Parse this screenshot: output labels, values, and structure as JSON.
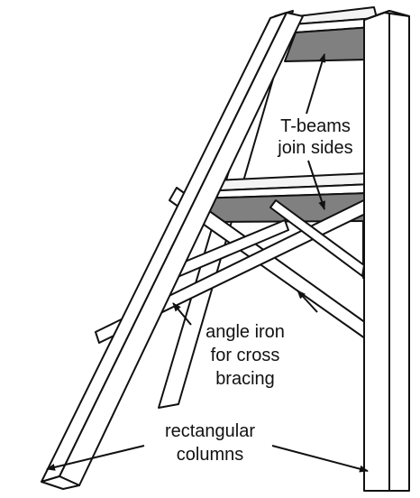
{
  "labels": {
    "tbeams_line1": "T-beams",
    "tbeams_line2": "join sides",
    "angle_line1": "angle iron",
    "angle_line2": "for cross",
    "angle_line3": "bracing",
    "columns_line1": "rectangular",
    "columns_line2": "columns"
  },
  "colors": {
    "line": "#111111",
    "fill": "#ffffff",
    "beam_top": "#f4f4f4",
    "beam_underside": "#808080"
  }
}
